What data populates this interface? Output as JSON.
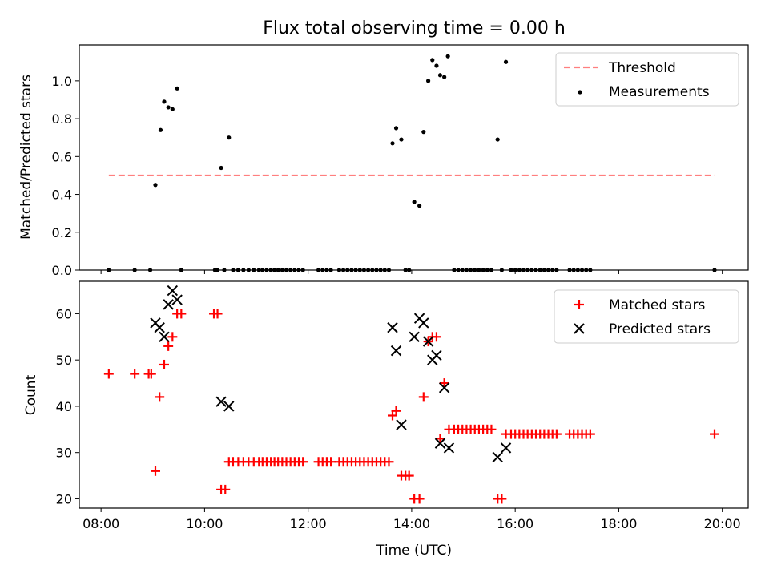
{
  "chart_data": [
    {
      "type": "scatter",
      "title": "Flux total observing time = 0.00 h",
      "ylabel": "Matched/Predicted stars",
      "xlabel": "",
      "x_unit": "decimal hours UTC",
      "xlim": [
        7.58,
        20.5
      ],
      "ylim": [
        0,
        1.19
      ],
      "yticks": [
        0.0,
        0.2,
        0.4,
        0.6,
        0.8,
        1.0
      ],
      "ytick_labels": [
        "0.0",
        "0.2",
        "0.4",
        "0.6",
        "0.8",
        "1.0"
      ],
      "legend_position": "top-right",
      "threshold": {
        "name": "Threshold",
        "y": 0.5,
        "x_range": [
          8.15,
          19.85
        ],
        "color": "#ff7f7f",
        "style": "dashed"
      },
      "series": [
        {
          "name": "Measurements",
          "color": "#000000",
          "points": [
            [
              8.15,
              0
            ],
            [
              8.65,
              0
            ],
            [
              8.95,
              0
            ],
            [
              9.05,
              0.45
            ],
            [
              9.15,
              0.74
            ],
            [
              9.22,
              0.89
            ],
            [
              9.3,
              0.86
            ],
            [
              9.38,
              0.85
            ],
            [
              9.47,
              0.96
            ],
            [
              9.55,
              0
            ],
            [
              10.2,
              0
            ],
            [
              10.25,
              0
            ],
            [
              10.32,
              0.54
            ],
            [
              10.38,
              0
            ],
            [
              10.47,
              0.7
            ],
            [
              10.55,
              0
            ],
            [
              10.65,
              0
            ],
            [
              10.75,
              0
            ],
            [
              10.85,
              0
            ],
            [
              10.95,
              0
            ],
            [
              11.05,
              0
            ],
            [
              11.12,
              0
            ],
            [
              11.2,
              0
            ],
            [
              11.28,
              0
            ],
            [
              11.35,
              0
            ],
            [
              11.42,
              0
            ],
            [
              11.5,
              0
            ],
            [
              11.58,
              0
            ],
            [
              11.66,
              0
            ],
            [
              11.74,
              0
            ],
            [
              11.82,
              0
            ],
            [
              11.9,
              0
            ],
            [
              12.2,
              0
            ],
            [
              12.28,
              0
            ],
            [
              12.36,
              0
            ],
            [
              12.44,
              0
            ],
            [
              12.6,
              0
            ],
            [
              12.68,
              0
            ],
            [
              12.76,
              0
            ],
            [
              12.84,
              0
            ],
            [
              12.92,
              0
            ],
            [
              13.0,
              0
            ],
            [
              13.08,
              0
            ],
            [
              13.16,
              0
            ],
            [
              13.24,
              0
            ],
            [
              13.32,
              0
            ],
            [
              13.4,
              0
            ],
            [
              13.48,
              0
            ],
            [
              13.56,
              0
            ],
            [
              13.63,
              0.67
            ],
            [
              13.7,
              0.75
            ],
            [
              13.8,
              0.69
            ],
            [
              13.88,
              0
            ],
            [
              13.95,
              0
            ],
            [
              14.05,
              0.36
            ],
            [
              14.15,
              0.34
            ],
            [
              14.23,
              0.73
            ],
            [
              14.32,
              1.0
            ],
            [
              14.4,
              1.11
            ],
            [
              14.48,
              1.08
            ],
            [
              14.55,
              1.03
            ],
            [
              14.63,
              1.02
            ],
            [
              14.7,
              1.13
            ],
            [
              14.82,
              0
            ],
            [
              14.9,
              0
            ],
            [
              14.98,
              0
            ],
            [
              15.06,
              0
            ],
            [
              15.14,
              0
            ],
            [
              15.22,
              0
            ],
            [
              15.3,
              0
            ],
            [
              15.38,
              0
            ],
            [
              15.46,
              0
            ],
            [
              15.54,
              0
            ],
            [
              15.66,
              0.69
            ],
            [
              15.74,
              0
            ],
            [
              15.82,
              1.1
            ],
            [
              15.92,
              0
            ],
            [
              16.0,
              0
            ],
            [
              16.08,
              0
            ],
            [
              16.16,
              0
            ],
            [
              16.24,
              0
            ],
            [
              16.32,
              0
            ],
            [
              16.4,
              0
            ],
            [
              16.48,
              0
            ],
            [
              16.56,
              0
            ],
            [
              16.64,
              0
            ],
            [
              16.72,
              0
            ],
            [
              16.8,
              0
            ],
            [
              17.05,
              0
            ],
            [
              17.13,
              0
            ],
            [
              17.21,
              0
            ],
            [
              17.29,
              0
            ],
            [
              17.37,
              0
            ],
            [
              17.45,
              0
            ],
            [
              19.85,
              0
            ]
          ]
        }
      ]
    },
    {
      "type": "scatter",
      "title": "",
      "ylabel": "Count",
      "xlabel": "Time (UTC)",
      "x_unit": "decimal hours UTC",
      "xlim": [
        7.58,
        20.5
      ],
      "ylim": [
        18,
        67
      ],
      "xticks": [
        8,
        10,
        12,
        14,
        16,
        18,
        20
      ],
      "xtick_labels": [
        "08:00",
        "10:00",
        "12:00",
        "14:00",
        "16:00",
        "18:00",
        "20:00"
      ],
      "yticks": [
        20,
        30,
        40,
        50,
        60
      ],
      "ytick_labels": [
        "20",
        "30",
        "40",
        "50",
        "60"
      ],
      "legend_position": "top-right",
      "series": [
        {
          "name": "Matched stars",
          "color": "#ff0000",
          "marker": "plus",
          "points": [
            [
              8.15,
              47
            ],
            [
              8.65,
              47
            ],
            [
              8.92,
              47
            ],
            [
              8.97,
              47
            ],
            [
              9.05,
              26
            ],
            [
              9.13,
              42
            ],
            [
              9.22,
              49
            ],
            [
              9.3,
              53
            ],
            [
              9.38,
              55
            ],
            [
              9.47,
              60
            ],
            [
              9.55,
              60
            ],
            [
              10.18,
              60
            ],
            [
              10.25,
              60
            ],
            [
              10.32,
              22
            ],
            [
              10.4,
              22
            ],
            [
              10.47,
              28
            ],
            [
              10.55,
              28
            ],
            [
              10.65,
              28
            ],
            [
              10.75,
              28
            ],
            [
              10.85,
              28
            ],
            [
              10.95,
              28
            ],
            [
              11.05,
              28
            ],
            [
              11.12,
              28
            ],
            [
              11.2,
              28
            ],
            [
              11.28,
              28
            ],
            [
              11.35,
              28
            ],
            [
              11.42,
              28
            ],
            [
              11.5,
              28
            ],
            [
              11.58,
              28
            ],
            [
              11.66,
              28
            ],
            [
              11.74,
              28
            ],
            [
              11.82,
              28
            ],
            [
              11.9,
              28
            ],
            [
              12.2,
              28
            ],
            [
              12.28,
              28
            ],
            [
              12.36,
              28
            ],
            [
              12.44,
              28
            ],
            [
              12.6,
              28
            ],
            [
              12.68,
              28
            ],
            [
              12.76,
              28
            ],
            [
              12.84,
              28
            ],
            [
              12.92,
              28
            ],
            [
              13.0,
              28
            ],
            [
              13.08,
              28
            ],
            [
              13.16,
              28
            ],
            [
              13.24,
              28
            ],
            [
              13.32,
              28
            ],
            [
              13.4,
              28
            ],
            [
              13.48,
              28
            ],
            [
              13.56,
              28
            ],
            [
              13.63,
              38
            ],
            [
              13.7,
              39
            ],
            [
              13.8,
              25
            ],
            [
              13.88,
              25
            ],
            [
              13.95,
              25
            ],
            [
              14.05,
              20
            ],
            [
              14.15,
              20
            ],
            [
              14.23,
              42
            ],
            [
              14.32,
              54
            ],
            [
              14.4,
              55
            ],
            [
              14.48,
              55
            ],
            [
              14.55,
              33
            ],
            [
              14.63,
              45
            ],
            [
              14.72,
              35
            ],
            [
              14.82,
              35
            ],
            [
              14.9,
              35
            ],
            [
              14.98,
              35
            ],
            [
              15.06,
              35
            ],
            [
              15.14,
              35
            ],
            [
              15.22,
              35
            ],
            [
              15.3,
              35
            ],
            [
              15.38,
              35
            ],
            [
              15.46,
              35
            ],
            [
              15.54,
              35
            ],
            [
              15.66,
              20
            ],
            [
              15.74,
              20
            ],
            [
              15.82,
              34
            ],
            [
              15.92,
              34
            ],
            [
              16.0,
              34
            ],
            [
              16.08,
              34
            ],
            [
              16.16,
              34
            ],
            [
              16.24,
              34
            ],
            [
              16.32,
              34
            ],
            [
              16.4,
              34
            ],
            [
              16.48,
              34
            ],
            [
              16.56,
              34
            ],
            [
              16.64,
              34
            ],
            [
              16.72,
              34
            ],
            [
              16.8,
              34
            ],
            [
              17.05,
              34
            ],
            [
              17.13,
              34
            ],
            [
              17.21,
              34
            ],
            [
              17.29,
              34
            ],
            [
              17.37,
              34
            ],
            [
              17.45,
              34
            ],
            [
              19.85,
              34
            ]
          ]
        },
        {
          "name": "Predicted stars",
          "color": "#000000",
          "marker": "x",
          "points": [
            [
              9.05,
              58
            ],
            [
              9.13,
              57
            ],
            [
              9.22,
              55
            ],
            [
              9.3,
              62
            ],
            [
              9.38,
              65
            ],
            [
              9.47,
              63
            ],
            [
              10.32,
              41
            ],
            [
              10.47,
              40
            ],
            [
              13.63,
              57
            ],
            [
              13.7,
              52
            ],
            [
              13.8,
              36
            ],
            [
              14.05,
              55
            ],
            [
              14.15,
              59
            ],
            [
              14.23,
              58
            ],
            [
              14.32,
              54
            ],
            [
              14.4,
              50
            ],
            [
              14.48,
              51
            ],
            [
              14.55,
              32
            ],
            [
              14.63,
              44
            ],
            [
              14.72,
              31
            ],
            [
              15.66,
              29
            ],
            [
              15.82,
              31
            ]
          ]
        }
      ]
    }
  ]
}
